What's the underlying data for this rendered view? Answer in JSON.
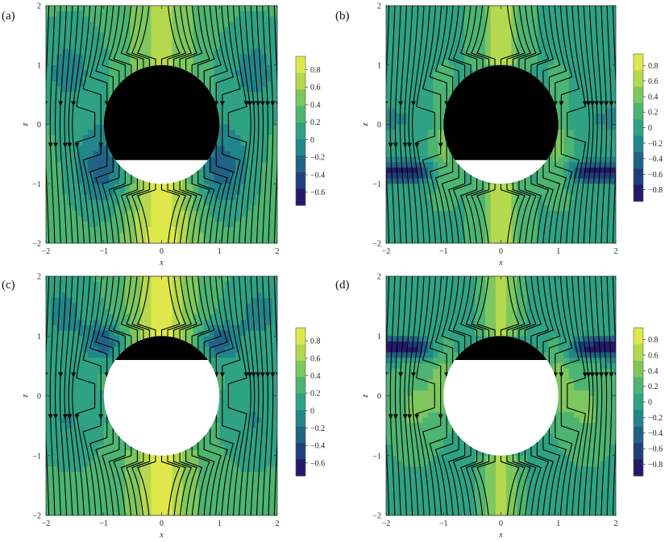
{
  "chart_data": [
    {
      "panel": "(a)",
      "type": "heatmap",
      "xlabel": "x",
      "ylabel": "z",
      "xlim": [
        -2,
        2
      ],
      "ylim": [
        -2,
        2
      ],
      "x_ticks": [
        "-2",
        "-1",
        "0",
        "1",
        "2"
      ],
      "y_ticks": [
        "2",
        "1",
        "0",
        "-1",
        "-2"
      ],
      "colorbar_ticks": [
        "0.8",
        "0.6",
        "0.4",
        "0.2",
        "0",
        "-0.2",
        "-0.4",
        "-0.6"
      ],
      "colorbar_range": [
        -0.75,
        0.95
      ],
      "sphere_radius": 1,
      "fill_level_z": -0.6,
      "filled_part": "above"
    },
    {
      "panel": "(b)",
      "type": "heatmap",
      "xlabel": "x",
      "ylabel": "z",
      "xlim": [
        -2,
        2
      ],
      "ylim": [
        -2,
        2
      ],
      "x_ticks": [
        "-2",
        "-1",
        "0",
        "1",
        "2"
      ],
      "y_ticks": [
        "2",
        "1",
        "0",
        "-1",
        "-2"
      ],
      "colorbar_ticks": [
        "0.8",
        "0.6",
        "0.4",
        "0.2",
        "0",
        "-0.2",
        "-0.4",
        "-0.6",
        "-0.8"
      ],
      "colorbar_range": [
        -0.95,
        0.95
      ],
      "sphere_radius": 1,
      "fill_level_z": -0.6,
      "filled_part": "above"
    },
    {
      "panel": "(c)",
      "type": "heatmap",
      "xlabel": "x",
      "ylabel": "z",
      "xlim": [
        -2,
        2
      ],
      "ylim": [
        -2,
        2
      ],
      "x_ticks": [
        "-2",
        "-1",
        "0",
        "1",
        "2"
      ],
      "y_ticks": [
        "2",
        "1",
        "0",
        "-1",
        "-2"
      ],
      "colorbar_ticks": [
        "0.8",
        "0.6",
        "0.4",
        "0.2",
        "0",
        "-0.2",
        "-0.4",
        "-0.6"
      ],
      "colorbar_range": [
        -0.75,
        0.95
      ],
      "sphere_radius": 1,
      "fill_level_z": 0.6,
      "filled_part": "above"
    },
    {
      "panel": "(d)",
      "type": "heatmap",
      "xlabel": "x",
      "ylabel": "z",
      "xlim": [
        -2,
        2
      ],
      "ylim": [
        -2,
        2
      ],
      "x_ticks": [
        "-2",
        "-1",
        "0",
        "1",
        "2"
      ],
      "y_ticks": [
        "2",
        "1",
        "0",
        "-1",
        "-2"
      ],
      "colorbar_ticks": [
        "0.8",
        "0.6",
        "0.4",
        "0.2",
        "0",
        "-0.2",
        "-0.4",
        "-0.6",
        "-0.8"
      ],
      "colorbar_range": [
        -0.95,
        0.95
      ],
      "sphere_radius": 1,
      "fill_level_z": 0.6,
      "filled_part": "above"
    }
  ],
  "colors": {
    "palette": [
      "#241a6b",
      "#1f3f7a",
      "#1f6385",
      "#21868a",
      "#2ea283",
      "#4db472",
      "#7dc75e",
      "#b4d94f",
      "#dfe84b"
    ],
    "fluid_fill": "#000000",
    "empty_fill": "#ffffff",
    "streamline": "#000000"
  }
}
